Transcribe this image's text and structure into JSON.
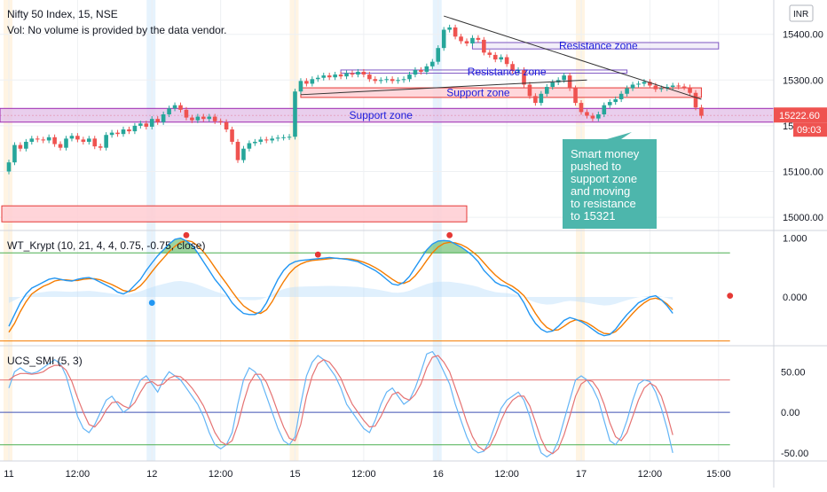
{
  "header": {
    "title": "Nifty 50 Index, 15, NSE",
    "volume_note": "Vol: No volume is provided by the data vendor.",
    "currency_badge": "INR"
  },
  "colors": {
    "up": "#26a69a",
    "down": "#ef5350",
    "support_fill": "#e1bee7",
    "support_line": "#9c27b0",
    "red_zone_fill": "#ffcdd2",
    "red_zone_line": "#e53935",
    "resistance_line": "#7e57c2",
    "label_text": "#1a1adb",
    "callout_bg": "#4db6ac",
    "price_badge": "#ef5350",
    "wt_blue": "#2196f3",
    "wt_orange": "#f57c00",
    "wt_green": "#4caf50",
    "smi_blue": "#64b5f6",
    "smi_red": "#e57373",
    "level_green": "#4caf50",
    "level_red": "#e57373",
    "level_blue": "#3f51b5",
    "session_band": "#fff3e0",
    "session_band2": "#e3f2fd",
    "grid": "#eef0f3"
  },
  "price_panel": {
    "price_badge": "15222.60",
    "countdown": "09:03",
    "annotations": {
      "resistance_1": "Resistance zone",
      "resistance_2": "Resistance zone",
      "support_upper": "Support zone",
      "support_main": "Support zone"
    },
    "callout_lines": [
      "Smart money",
      "pushed to",
      "support zone",
      "and moving",
      "to resistance",
      "to 15321"
    ]
  },
  "chart_data": [
    {
      "type": "candlestick",
      "title": "Nifty 50 Index, 15, NSE",
      "ylim": [
        14975,
        15475
      ],
      "y_ticks": [
        "15400.00",
        "15300.00",
        "15200.00",
        "15100.00",
        "15000.00"
      ],
      "y_tick_values": [
        15400,
        15300,
        15200,
        15100,
        15000
      ],
      "x_ticks": [
        "11",
        "12:00",
        "12",
        "12:00",
        "15",
        "12:00",
        "16",
        "12:00",
        "17",
        "12:00",
        "15:00"
      ],
      "x_tick_candle_index": [
        0,
        12,
        25,
        37,
        50,
        62,
        75,
        87,
        100,
        112,
        124
      ],
      "closes": [
        15120,
        15158,
        15150,
        15165,
        15172,
        15170,
        15168,
        15175,
        15160,
        15152,
        15172,
        15178,
        15170,
        15165,
        15172,
        15155,
        15152,
        15180,
        15185,
        15182,
        15192,
        15188,
        15200,
        15205,
        15198,
        15215,
        15208,
        15225,
        15238,
        15245,
        15235,
        15218,
        15212,
        15220,
        15215,
        15220,
        15210,
        15208,
        15192,
        15165,
        15125,
        15150,
        15162,
        15165,
        15170,
        15168,
        15172,
        15174,
        15175,
        15176,
        15275,
        15298,
        15292,
        15302,
        15305,
        15310,
        15306,
        15312,
        15308,
        15315,
        15312,
        15318,
        15312,
        15302,
        15298,
        15300,
        15302,
        15298,
        15300,
        15302,
        15312,
        15322,
        15318,
        15330,
        15340,
        15370,
        15410,
        15415,
        15395,
        15385,
        15380,
        15392,
        15388,
        15360,
        15355,
        15345,
        15350,
        15335,
        15320,
        15322,
        15290,
        15265,
        15250,
        15270,
        15285,
        15295,
        15300,
        15310,
        15282,
        15250,
        15230,
        15222,
        15216,
        15225,
        15245,
        15252,
        15258,
        15270,
        15282,
        15290,
        15292,
        15296,
        15288,
        15280,
        15282,
        15285,
        15288,
        15286,
        15284,
        15272,
        15240,
        15222
      ]
    },
    {
      "type": "line",
      "title": "WT_Krypt (10, 21, 4, 4, 0.75, -0.75, close)",
      "ylim": [
        -0.8,
        1.1
      ],
      "y_ticks": [
        "1.000",
        "0.000"
      ],
      "y_tick_values": [
        1.0,
        0.0
      ],
      "levels": [
        0.75,
        -0.75
      ],
      "series": [
        {
          "values": [
            -0.5,
            -0.3,
            -0.1,
            0.05,
            0.15,
            0.2,
            0.25,
            0.3,
            0.32,
            0.3,
            0.28,
            0.27,
            0.3,
            0.32,
            0.33,
            0.3,
            0.25,
            0.2,
            0.15,
            0.08,
            0.05,
            0.1,
            0.2,
            0.3,
            0.45,
            0.58,
            0.7,
            0.8,
            0.9,
            0.98,
            1.0,
            0.95,
            0.88,
            0.75,
            0.6,
            0.45,
            0.3,
            0.18,
            0.05,
            -0.1,
            -0.2,
            -0.28,
            -0.3,
            -0.3,
            -0.25,
            -0.1,
            0.1,
            0.3,
            0.45,
            0.55,
            0.6,
            0.62,
            0.63,
            0.64,
            0.65,
            0.66,
            0.67,
            0.66,
            0.65,
            0.64,
            0.62,
            0.6,
            0.55,
            0.5,
            0.45,
            0.38,
            0.3,
            0.22,
            0.2,
            0.25,
            0.35,
            0.5,
            0.65,
            0.8,
            0.9,
            0.95,
            0.96,
            0.95,
            0.9,
            0.85,
            0.78,
            0.7,
            0.6,
            0.45,
            0.35,
            0.25,
            0.2,
            0.18,
            0.12,
            0.05,
            -0.1,
            -0.3,
            -0.45,
            -0.55,
            -0.6,
            -0.58,
            -0.5,
            -0.4,
            -0.35,
            -0.38,
            -0.42,
            -0.48,
            -0.55,
            -0.62,
            -0.66,
            -0.64,
            -0.55,
            -0.42,
            -0.3,
            -0.2,
            -0.1,
            -0.05,
            0.0,
            0.02,
            -0.05,
            -0.15,
            -0.28
          ]
        },
        {
          "values": [
            -0.6,
            -0.45,
            -0.25,
            -0.08,
            0.05,
            0.12,
            0.18,
            0.22,
            0.27,
            0.29,
            0.29,
            0.28,
            0.28,
            0.3,
            0.31,
            0.31,
            0.29,
            0.25,
            0.21,
            0.16,
            0.11,
            0.09,
            0.12,
            0.19,
            0.3,
            0.43,
            0.55,
            0.66,
            0.77,
            0.86,
            0.93,
            0.96,
            0.94,
            0.87,
            0.77,
            0.64,
            0.5,
            0.36,
            0.23,
            0.09,
            -0.04,
            -0.15,
            -0.22,
            -0.27,
            -0.28,
            -0.22,
            -0.08,
            0.1,
            0.26,
            0.4,
            0.5,
            0.56,
            0.6,
            0.62,
            0.63,
            0.64,
            0.65,
            0.66,
            0.65,
            0.65,
            0.64,
            0.62,
            0.59,
            0.55,
            0.5,
            0.44,
            0.37,
            0.3,
            0.24,
            0.23,
            0.27,
            0.36,
            0.48,
            0.62,
            0.75,
            0.85,
            0.91,
            0.93,
            0.92,
            0.89,
            0.84,
            0.77,
            0.69,
            0.58,
            0.47,
            0.37,
            0.29,
            0.23,
            0.18,
            0.11,
            0.02,
            -0.12,
            -0.28,
            -0.42,
            -0.52,
            -0.57,
            -0.56,
            -0.5,
            -0.43,
            -0.39,
            -0.4,
            -0.44,
            -0.5,
            -0.57,
            -0.62,
            -0.63,
            -0.59,
            -0.5,
            -0.39,
            -0.28,
            -0.18,
            -0.1,
            -0.04,
            -0.02,
            -0.05,
            -0.12,
            -0.22
          ]
        }
      ],
      "signal_dots": [
        {
          "index": 25,
          "value": -0.1,
          "color": "#2196f3"
        },
        {
          "index": 31,
          "value": 1.05,
          "color": "#e53935"
        },
        {
          "index": 54,
          "value": 0.72,
          "color": "#e53935"
        },
        {
          "index": 77,
          "value": 1.05,
          "color": "#e53935"
        },
        {
          "index": 126,
          "value": 0.02,
          "color": "#e53935"
        }
      ]
    },
    {
      "type": "line",
      "title": "UCS_SMI (5, 3)",
      "ylim": [
        -60,
        80
      ],
      "y_ticks": [
        "50.00",
        "0.00",
        "-50.00"
      ],
      "y_tick_values": [
        50,
        0,
        -50
      ],
      "levels": [
        40,
        0,
        -40
      ],
      "series": [
        {
          "values": [
            30,
            50,
            55,
            50,
            48,
            50,
            55,
            60,
            65,
            60,
            45,
            20,
            -5,
            -20,
            -25,
            -15,
            0,
            15,
            20,
            10,
            0,
            5,
            25,
            40,
            45,
            35,
            25,
            40,
            50,
            45,
            40,
            30,
            20,
            10,
            -5,
            -25,
            -40,
            -45,
            -40,
            -25,
            10,
            40,
            55,
            50,
            40,
            20,
            0,
            -20,
            -35,
            -40,
            -30,
            10,
            45,
            62,
            70,
            65,
            55,
            45,
            30,
            10,
            0,
            -10,
            -20,
            -25,
            -10,
            10,
            25,
            30,
            20,
            10,
            15,
            30,
            50,
            72,
            75,
            65,
            50,
            35,
            10,
            -10,
            -30,
            -45,
            -50,
            -48,
            -35,
            -15,
            5,
            15,
            20,
            25,
            15,
            -5,
            -30,
            -50,
            -55,
            -50,
            -35,
            -10,
            15,
            40,
            45,
            40,
            30,
            15,
            -10,
            -35,
            -40,
            -30,
            -10,
            15,
            35,
            40,
            38,
            25,
            5,
            -20,
            -50
          ]
        },
        {
          "values": [
            40,
            45,
            48,
            48,
            47,
            48,
            50,
            55,
            58,
            58,
            52,
            38,
            18,
            0,
            -15,
            -18,
            -10,
            3,
            12,
            13,
            8,
            5,
            12,
            25,
            36,
            38,
            33,
            35,
            42,
            45,
            44,
            38,
            30,
            20,
            8,
            -8,
            -25,
            -36,
            -40,
            -35,
            -15,
            12,
            35,
            47,
            47,
            37,
            20,
            0,
            -18,
            -32,
            -35,
            -15,
            20,
            45,
            60,
            65,
            62,
            53,
            42,
            25,
            10,
            0,
            -10,
            -18,
            -17,
            -5,
            10,
            22,
            25,
            18,
            15,
            22,
            35,
            55,
            68,
            70,
            62,
            50,
            30,
            10,
            -12,
            -30,
            -42,
            -47,
            -42,
            -28,
            -10,
            5,
            15,
            20,
            20,
            8,
            -12,
            -33,
            -47,
            -51,
            -45,
            -28,
            -5,
            20,
            35,
            40,
            38,
            28,
            10,
            -13,
            -30,
            -35,
            -25,
            -5,
            15,
            30,
            36,
            32,
            20,
            -2,
            -28
          ]
        }
      ]
    }
  ]
}
